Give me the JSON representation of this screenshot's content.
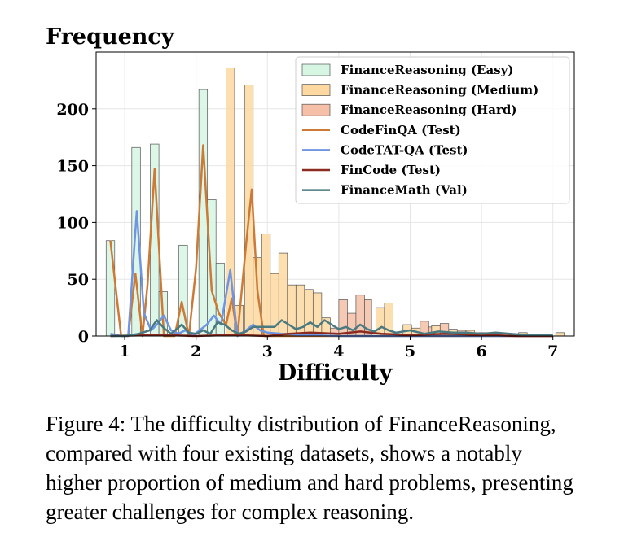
{
  "chart_data": {
    "type": "histogram",
    "ylabel": "Frequency",
    "xlabel": "Difficulty",
    "xlim": [
      0.6,
      7.3
    ],
    "ylim": [
      0,
      250
    ],
    "xticks": [
      1,
      2,
      3,
      4,
      5,
      6,
      7
    ],
    "yticks": [
      0,
      50,
      100,
      150,
      200
    ],
    "grid": true,
    "legend_position": "top-right",
    "series": [
      {
        "name": "FinanceReasoning (Easy)",
        "kind": "bar",
        "color": "#d6f5e3",
        "bins": [
          {
            "x0": 0.74,
            "x1": 0.86,
            "value": 84
          },
          {
            "x0": 1.1,
            "x1": 1.22,
            "value": 166
          },
          {
            "x0": 1.36,
            "x1": 1.48,
            "value": 169
          },
          {
            "x0": 1.48,
            "x1": 1.6,
            "value": 39
          },
          {
            "x0": 1.76,
            "x1": 1.88,
            "value": 80
          },
          {
            "x0": 2.04,
            "x1": 2.16,
            "value": 217
          },
          {
            "x0": 2.16,
            "x1": 2.28,
            "value": 120
          },
          {
            "x0": 2.28,
            "x1": 2.4,
            "value": 64
          }
        ]
      },
      {
        "name": "FinanceReasoning (Medium)",
        "kind": "bar",
        "color": "#fdd8a0",
        "bins": [
          {
            "x0": 2.42,
            "x1": 2.54,
            "value": 236
          },
          {
            "x0": 2.54,
            "x1": 2.66,
            "value": 27
          },
          {
            "x0": 2.68,
            "x1": 2.8,
            "value": 221
          },
          {
            "x0": 2.8,
            "x1": 2.92,
            "value": 69
          },
          {
            "x0": 2.92,
            "x1": 3.04,
            "value": 90
          },
          {
            "x0": 3.04,
            "x1": 3.16,
            "value": 55
          },
          {
            "x0": 3.16,
            "x1": 3.28,
            "value": 73
          },
          {
            "x0": 3.28,
            "x1": 3.4,
            "value": 45
          },
          {
            "x0": 3.4,
            "x1": 3.52,
            "value": 45
          },
          {
            "x0": 3.52,
            "x1": 3.64,
            "value": 41
          },
          {
            "x0": 3.64,
            "x1": 3.76,
            "value": 38
          },
          {
            "x0": 3.76,
            "x1": 3.88,
            "value": 16
          },
          {
            "x0": 4.52,
            "x1": 4.64,
            "value": 25
          },
          {
            "x0": 4.64,
            "x1": 4.76,
            "value": 29
          },
          {
            "x0": 4.9,
            "x1": 5.02,
            "value": 10
          },
          {
            "x0": 5.02,
            "x1": 5.14,
            "value": 7
          },
          {
            "x0": 5.3,
            "x1": 5.42,
            "value": 9
          },
          {
            "x0": 5.54,
            "x1": 5.66,
            "value": 6
          },
          {
            "x0": 5.78,
            "x1": 5.9,
            "value": 5
          },
          {
            "x0": 6.4,
            "x1": 6.52,
            "value": 2
          },
          {
            "x0": 6.52,
            "x1": 6.64,
            "value": 3
          },
          {
            "x0": 7.04,
            "x1": 7.16,
            "value": 3
          }
        ]
      },
      {
        "name": "FinanceReasoning (Hard)",
        "kind": "bar",
        "color": "#f5bfa8",
        "bins": [
          {
            "x0": 3.88,
            "x1": 4.0,
            "value": 7
          },
          {
            "x0": 4.0,
            "x1": 4.12,
            "value": 32
          },
          {
            "x0": 4.12,
            "x1": 4.24,
            "value": 20
          },
          {
            "x0": 4.24,
            "x1": 4.36,
            "value": 36
          },
          {
            "x0": 4.36,
            "x1": 4.46,
            "value": 32
          },
          {
            "x0": 4.76,
            "x1": 4.88,
            "value": 2
          },
          {
            "x0": 5.14,
            "x1": 5.26,
            "value": 13
          },
          {
            "x0": 5.26,
            "x1": 5.3,
            "value": 8
          },
          {
            "x0": 5.42,
            "x1": 5.54,
            "value": 11
          },
          {
            "x0": 5.66,
            "x1": 5.78,
            "value": 5
          },
          {
            "x0": 5.9,
            "x1": 6.02,
            "value": 3
          },
          {
            "x0": 6.02,
            "x1": 6.14,
            "value": 3
          },
          {
            "x0": 6.14,
            "x1": 6.26,
            "value": 2
          },
          {
            "x0": 6.26,
            "x1": 6.4,
            "value": 2
          },
          {
            "x0": 6.64,
            "x1": 6.76,
            "value": 1
          }
        ]
      },
      {
        "name": "CodeFinQA (Test)",
        "kind": "line",
        "color": "#cc7a35",
        "points": [
          [
            0.8,
            84
          ],
          [
            0.95,
            0
          ],
          [
            1.05,
            0
          ],
          [
            1.15,
            55
          ],
          [
            1.25,
            0
          ],
          [
            1.32,
            45
          ],
          [
            1.42,
            147
          ],
          [
            1.55,
            0
          ],
          [
            1.7,
            0
          ],
          [
            1.8,
            30
          ],
          [
            1.9,
            0
          ],
          [
            2.0,
            60
          ],
          [
            2.1,
            168
          ],
          [
            2.22,
            40
          ],
          [
            2.32,
            20
          ],
          [
            2.42,
            10
          ],
          [
            2.5,
            33
          ],
          [
            2.58,
            0
          ],
          [
            2.7,
            80
          ],
          [
            2.78,
            129
          ],
          [
            2.86,
            40
          ],
          [
            2.95,
            0
          ],
          [
            3.2,
            0
          ],
          [
            4.0,
            0
          ],
          [
            5.0,
            0
          ],
          [
            6.0,
            0
          ],
          [
            7.0,
            0
          ]
        ]
      },
      {
        "name": "CodeTAT-QA (Test)",
        "kind": "line",
        "color": "#6f95e2",
        "points": [
          [
            0.8,
            2
          ],
          [
            0.95,
            0
          ],
          [
            1.05,
            0
          ],
          [
            1.17,
            110
          ],
          [
            1.27,
            20
          ],
          [
            1.37,
            5
          ],
          [
            1.45,
            10
          ],
          [
            1.55,
            18
          ],
          [
            1.65,
            5
          ],
          [
            1.75,
            2
          ],
          [
            1.85,
            5
          ],
          [
            1.95,
            0
          ],
          [
            2.05,
            5
          ],
          [
            2.15,
            10
          ],
          [
            2.25,
            18
          ],
          [
            2.35,
            10
          ],
          [
            2.48,
            58
          ],
          [
            2.58,
            0
          ],
          [
            2.7,
            5
          ],
          [
            2.8,
            10
          ],
          [
            2.9,
            5
          ],
          [
            3.0,
            3
          ],
          [
            3.2,
            2
          ],
          [
            3.5,
            1
          ],
          [
            4.0,
            0
          ],
          [
            5.0,
            0
          ],
          [
            6.0,
            0
          ],
          [
            7.0,
            0
          ]
        ]
      },
      {
        "name": "FinCode (Test)",
        "kind": "line",
        "color": "#8b2a1e",
        "points": [
          [
            0.8,
            0
          ],
          [
            1.5,
            1
          ],
          [
            2.0,
            0
          ],
          [
            2.5,
            1
          ],
          [
            3.0,
            0
          ],
          [
            3.3,
            2
          ],
          [
            3.6,
            3
          ],
          [
            4.0,
            2
          ],
          [
            4.3,
            4
          ],
          [
            4.6,
            2
          ],
          [
            5.0,
            1
          ],
          [
            5.5,
            2
          ],
          [
            6.0,
            1
          ],
          [
            6.5,
            0
          ],
          [
            7.0,
            0
          ]
        ]
      },
      {
        "name": "FinanceMath (Val)",
        "kind": "line",
        "color": "#4a7a80",
        "points": [
          [
            0.8,
            0
          ],
          [
            1.0,
            0
          ],
          [
            1.2,
            2
          ],
          [
            1.35,
            5
          ],
          [
            1.45,
            14
          ],
          [
            1.55,
            7
          ],
          [
            1.65,
            2
          ],
          [
            1.8,
            10
          ],
          [
            1.9,
            3
          ],
          [
            2.0,
            2
          ],
          [
            2.1,
            5
          ],
          [
            2.2,
            2
          ],
          [
            2.3,
            12
          ],
          [
            2.4,
            10
          ],
          [
            2.5,
            5
          ],
          [
            2.6,
            2
          ],
          [
            2.7,
            4
          ],
          [
            2.8,
            8
          ],
          [
            2.9,
            8
          ],
          [
            3.0,
            8
          ],
          [
            3.1,
            8
          ],
          [
            3.2,
            14
          ],
          [
            3.3,
            10
          ],
          [
            3.4,
            6
          ],
          [
            3.5,
            8
          ],
          [
            3.6,
            12
          ],
          [
            3.7,
            8
          ],
          [
            3.8,
            14
          ],
          [
            3.9,
            10
          ],
          [
            4.0,
            6
          ],
          [
            4.1,
            8
          ],
          [
            4.2,
            5
          ],
          [
            4.3,
            10
          ],
          [
            4.4,
            6
          ],
          [
            4.5,
            4
          ],
          [
            4.6,
            8
          ],
          [
            4.7,
            5
          ],
          [
            4.8,
            3
          ],
          [
            5.0,
            5
          ],
          [
            5.2,
            2
          ],
          [
            5.4,
            4
          ],
          [
            5.6,
            3
          ],
          [
            5.8,
            3
          ],
          [
            6.0,
            2
          ],
          [
            6.2,
            3
          ],
          [
            6.4,
            2
          ],
          [
            6.6,
            1
          ],
          [
            7.0,
            1
          ]
        ]
      }
    ]
  },
  "caption": "Figure 4: The difficulty distribution of FinanceReasoning, compared with four existing datasets, shows a notably higher proportion of medium and hard problems, presenting greater challenges for complex reasoning."
}
